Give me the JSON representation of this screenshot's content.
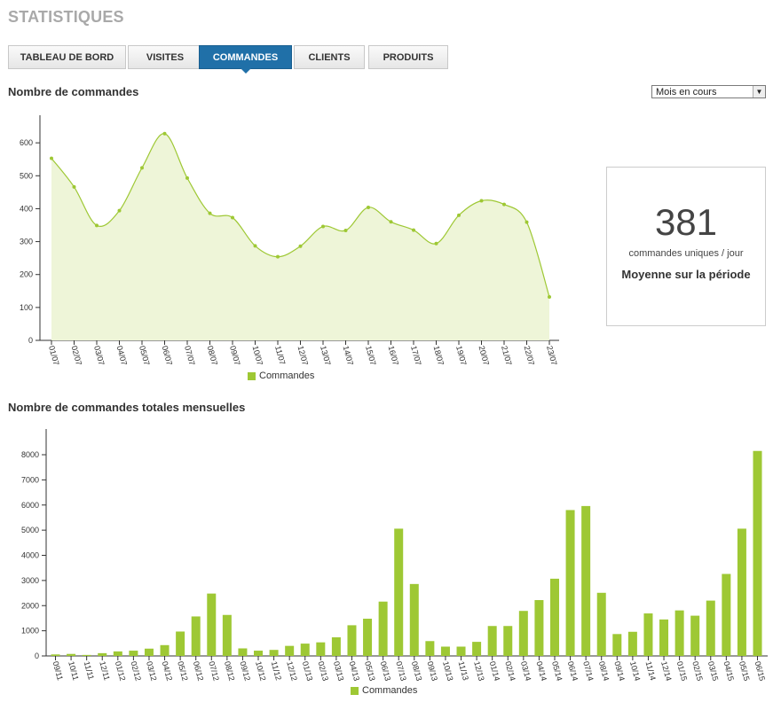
{
  "page": {
    "title": "STATISTIQUES"
  },
  "tabs": [
    {
      "label": "TABLEAU DE BORD",
      "active": false
    },
    {
      "label": "VISITES",
      "active": false
    },
    {
      "label": "COMMANDES",
      "active": true
    },
    {
      "label": "CLIENTS",
      "active": false
    },
    {
      "label": "PRODUITS",
      "active": false
    }
  ],
  "orders_section": {
    "title": "Nombre de commandes",
    "period_select": {
      "value": "Mois en cours"
    }
  },
  "stat": {
    "value": "381",
    "unit": "commandes uniques / jour",
    "caption": "Moyenne sur la période"
  },
  "monthly_section": {
    "title": "Nombre de commandes totales mensuelles"
  },
  "colors": {
    "accent": "#9ec834",
    "area_fill": "#eef5d8",
    "tab_active": "#2070a8"
  },
  "chart_data": [
    {
      "type": "area",
      "ylim": [
        0,
        700
      ],
      "yticks": [
        0,
        100,
        200,
        300,
        400,
        500,
        600
      ],
      "categories": [
        "01/07",
        "02/07",
        "03/07",
        "04/07",
        "05/07",
        "06/07",
        "07/07",
        "08/07",
        "09/07",
        "10/07",
        "11/07",
        "12/07",
        "13/07",
        "14/07",
        "15/07",
        "16/07",
        "17/07",
        "18/07",
        "19/07",
        "20/07",
        "21/07",
        "22/07",
        "23/07"
      ],
      "series": [
        {
          "name": "Commandes",
          "values": [
            553,
            466,
            349,
            394,
            524,
            628,
            493,
            386,
            373,
            287,
            254,
            286,
            346,
            334,
            404,
            360,
            335,
            294,
            380,
            424,
            413,
            359,
            132
          ]
        }
      ],
      "grid": false,
      "legend": "bottom-center"
    },
    {
      "type": "bar",
      "ylim": [
        0,
        9000
      ],
      "yticks": [
        0,
        1000,
        2000,
        3000,
        4000,
        5000,
        6000,
        7000,
        8000
      ],
      "categories": [
        "09/11",
        "10/11",
        "11/11",
        "12/11",
        "01/12",
        "02/12",
        "03/12",
        "04/12",
        "05/12",
        "06/12",
        "07/12",
        "08/12",
        "09/12",
        "10/12",
        "11/12",
        "12/12",
        "01/13",
        "02/13",
        "03/13",
        "04/13",
        "05/13",
        "06/13",
        "07/13",
        "08/13",
        "09/13",
        "10/13",
        "11/13",
        "12/13",
        "01/14",
        "02/14",
        "03/14",
        "04/14",
        "05/14",
        "06/14",
        "07/14",
        "08/14",
        "09/14",
        "10/14",
        "11/14",
        "12/14",
        "01/15",
        "02/15",
        "03/15",
        "04/15",
        "05/15",
        "06/15"
      ],
      "series": [
        {
          "name": "Commandes",
          "values": [
            60,
            80,
            40,
            110,
            180,
            210,
            290,
            430,
            970,
            1570,
            2480,
            1630,
            300,
            210,
            240,
            400,
            490,
            540,
            740,
            1220,
            1480,
            2160,
            5060,
            2860,
            590,
            370,
            370,
            560,
            1190,
            1190,
            1790,
            2220,
            3070,
            5800,
            5960,
            2510,
            870,
            960,
            1690,
            1450,
            1810,
            1600,
            2200,
            3260,
            5060,
            8150
          ]
        }
      ],
      "grid": false,
      "legend": "bottom-center"
    }
  ]
}
